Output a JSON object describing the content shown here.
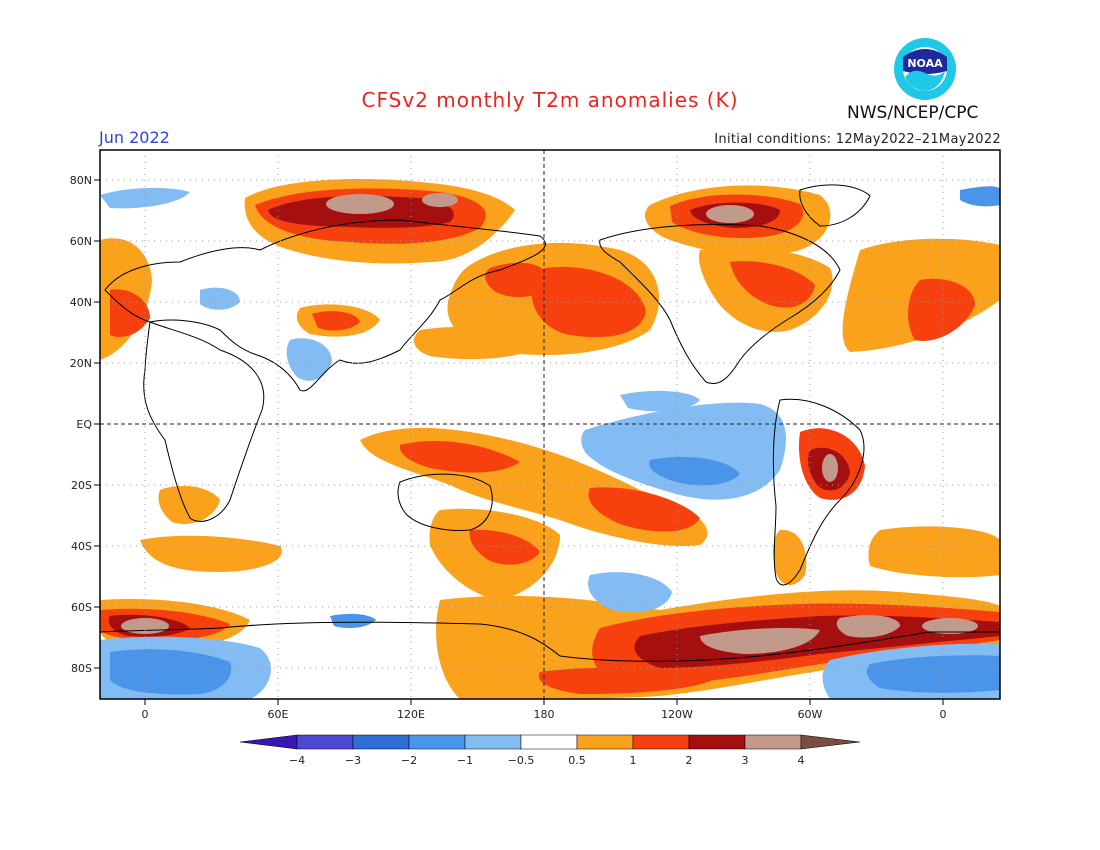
{
  "header": {
    "title": "CFSv2 monthly T2m anomalies (K)",
    "month": "Jun 2022",
    "initial_conditions": "Initial conditions: 12May2022–21May2022",
    "agency": "NWS/NCEP/CPC",
    "logo_text": "NOAA",
    "logo_icon": "noaa-logo"
  },
  "map": {
    "lat_labels": [
      "80N",
      "60N",
      "40N",
      "20N",
      "EQ",
      "20S",
      "40S",
      "60S",
      "80S"
    ],
    "lon_labels": [
      "0",
      "60E",
      "120E",
      "180",
      "120W",
      "60W",
      "0"
    ]
  },
  "colorbar": {
    "labels": [
      "−4",
      "−3",
      "−2",
      "−1",
      "−0.5",
      "0.5",
      "1",
      "2",
      "3",
      "4"
    ],
    "colors": [
      "#3a16b4",
      "#4b48d2",
      "#2f6fd6",
      "#4a95ea",
      "#83bbf3",
      "#ffffff",
      "#fba21d",
      "#f6410f",
      "#a50f0f",
      "#c19a8c",
      "#7a4b3f"
    ]
  }
}
